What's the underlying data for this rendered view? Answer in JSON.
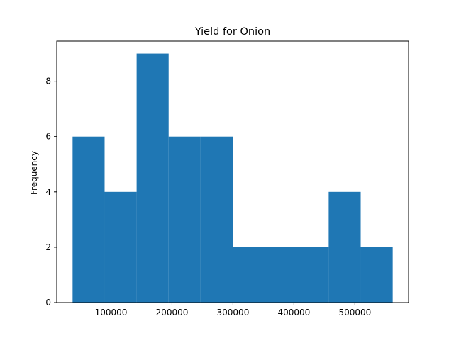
{
  "chart_data": {
    "type": "bar",
    "title": "Yield for Onion",
    "xlabel": "",
    "ylabel": "Frequency",
    "bins": [
      {
        "x0": 37000,
        "x1": 89500,
        "count": 6
      },
      {
        "x0": 89500,
        "x1": 142000,
        "count": 4
      },
      {
        "x0": 142000,
        "x1": 194500,
        "count": 9
      },
      {
        "x0": 194500,
        "x1": 247000,
        "count": 6
      },
      {
        "x0": 247000,
        "x1": 299500,
        "count": 6
      },
      {
        "x0": 299500,
        "x1": 352000,
        "count": 2
      },
      {
        "x0": 352000,
        "x1": 404500,
        "count": 2
      },
      {
        "x0": 404500,
        "x1": 457000,
        "count": 2
      },
      {
        "x0": 457000,
        "x1": 509500,
        "count": 4
      },
      {
        "x0": 509500,
        "x1": 562000,
        "count": 2
      }
    ],
    "xlim": [
      11000,
      588000
    ],
    "ylim": [
      0,
      9.45
    ],
    "x_ticks": [
      100000,
      200000,
      300000,
      400000,
      500000
    ],
    "x_tick_labels": [
      "100000",
      "200000",
      "300000",
      "400000",
      "500000"
    ],
    "y_ticks": [
      0,
      2,
      4,
      6,
      8
    ],
    "y_tick_labels": [
      "0",
      "2",
      "4",
      "6",
      "8"
    ],
    "bar_color": "#1f77b4",
    "grid": false,
    "legend": "none"
  }
}
